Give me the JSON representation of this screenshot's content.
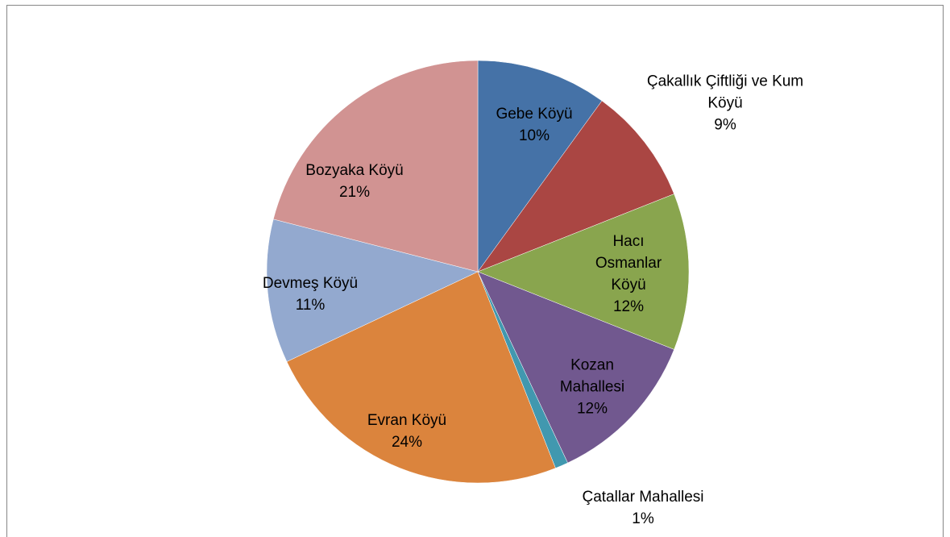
{
  "chart_data": {
    "type": "pie",
    "categories": [
      "Gebe Köyü",
      "Çakallık Çiftliği ve Kum Köyü",
      "Hacı Osmanlar Köyü",
      "Kozan Mahallesi",
      "Çatallar Mahallesi",
      "Evran Köyü",
      "Devmeş Köyü",
      "Bozyaka Köyü"
    ],
    "values": [
      10,
      9,
      12,
      12,
      1,
      24,
      11,
      21
    ],
    "value_labels": [
      "10%",
      "9%",
      "12%",
      "12%",
      "1%",
      "24%",
      "11%",
      "21%"
    ],
    "colors": [
      "#4572a7",
      "#aa4643",
      "#89a54e",
      "#71588f",
      "#4198af",
      "#db843d",
      "#93a9cf",
      "#d19392"
    ]
  }
}
